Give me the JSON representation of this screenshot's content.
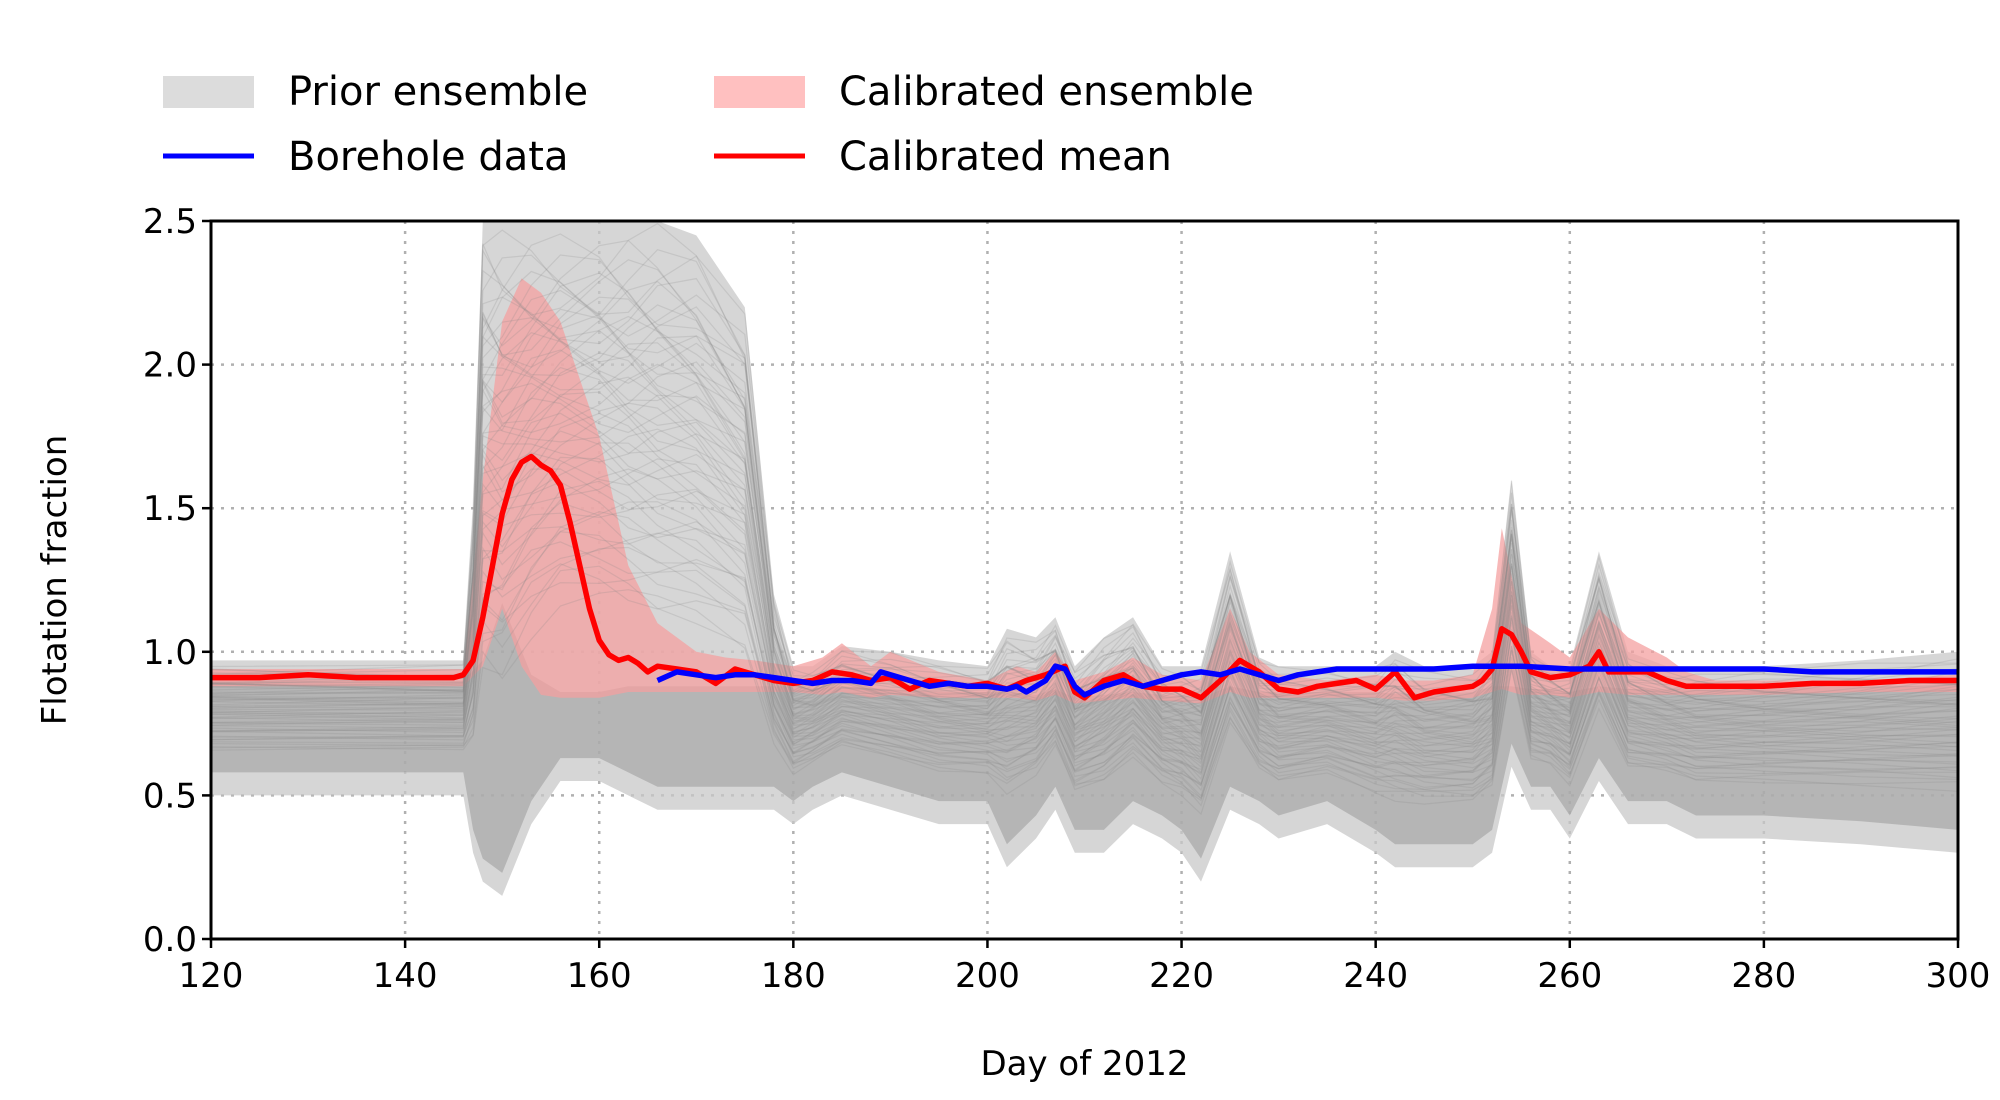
{
  "chart_data": {
    "type": "line",
    "xlabel": "Day of 2012",
    "ylabel": "Flotation fraction",
    "xlim": [
      120,
      300
    ],
    "ylim": [
      0,
      2.5
    ],
    "xticks": [
      120,
      140,
      160,
      180,
      200,
      220,
      240,
      260,
      280,
      300
    ],
    "yticks": [
      0.0,
      0.5,
      1.0,
      1.5,
      2.0,
      2.5
    ],
    "xtick_labels": [
      "120",
      "140",
      "160",
      "180",
      "200",
      "220",
      "240",
      "260",
      "280",
      "300"
    ],
    "ytick_labels": [
      "0.0",
      "0.5",
      "1.0",
      "1.5",
      "2.0",
      "2.5"
    ],
    "grid": true,
    "legend_position": "top, above plot, two columns",
    "colors": {
      "prior": "#c8c8c8",
      "prior_lines": "#8a8a8a",
      "calibrated": "#f4a0a0",
      "borehole": "#0000ff",
      "calibrated_mean": "#ff0000",
      "grid": "#b0b0b0"
    },
    "legend": [
      {
        "label": "Prior ensemble",
        "kind": "patch",
        "color": "#dcdcdc"
      },
      {
        "label": "Calibrated ensemble",
        "kind": "patch",
        "color": "#ffc0c0"
      },
      {
        "label": "Borehole data",
        "kind": "line",
        "color": "#0000ff"
      },
      {
        "label": "Calibrated mean",
        "kind": "line",
        "color": "#ff0000"
      }
    ],
    "series": [
      {
        "name": "Prior ensemble",
        "kind": "band",
        "x": [
          120,
          146,
          147,
          148,
          150,
          153,
          156,
          160,
          163,
          166,
          170,
          175,
          178,
          180,
          182,
          185,
          190,
          195,
          200,
          202,
          205,
          207,
          209,
          212,
          215,
          218,
          220,
          222,
          225,
          228,
          230,
          235,
          240,
          242,
          245,
          250,
          252,
          254,
          256,
          258,
          260,
          263,
          266,
          270,
          273,
          280,
          290,
          300
        ],
        "upper": [
          0.97,
          0.97,
          1.5,
          2.5,
          2.5,
          2.5,
          2.5,
          2.5,
          2.5,
          2.5,
          2.45,
          2.2,
          1.2,
          0.95,
          0.95,
          1.02,
          1.0,
          0.97,
          0.95,
          1.08,
          1.05,
          1.12,
          0.95,
          1.05,
          1.12,
          0.95,
          0.95,
          0.95,
          1.35,
          0.98,
          0.95,
          0.95,
          0.95,
          1.0,
          0.95,
          0.95,
          1.0,
          1.6,
          1.0,
          0.95,
          0.95,
          1.35,
          1.0,
          0.95,
          0.95,
          0.95,
          0.97,
          1.0
        ],
        "lower": [
          0.5,
          0.5,
          0.3,
          0.2,
          0.15,
          0.4,
          0.55,
          0.55,
          0.5,
          0.45,
          0.45,
          0.45,
          0.45,
          0.4,
          0.45,
          0.5,
          0.45,
          0.4,
          0.4,
          0.25,
          0.35,
          0.45,
          0.3,
          0.3,
          0.4,
          0.35,
          0.3,
          0.2,
          0.45,
          0.4,
          0.35,
          0.4,
          0.3,
          0.25,
          0.25,
          0.25,
          0.3,
          0.6,
          0.45,
          0.45,
          0.35,
          0.55,
          0.4,
          0.4,
          0.35,
          0.35,
          0.33,
          0.3
        ]
      },
      {
        "name": "Calibrated ensemble",
        "kind": "band",
        "x": [
          120,
          146,
          148,
          150,
          152,
          154,
          156,
          158,
          160,
          163,
          166,
          170,
          173,
          176,
          180,
          183,
          185,
          188,
          190,
          195,
          200,
          203,
          205,
          207,
          209,
          212,
          215,
          218,
          222,
          225,
          227,
          230,
          235,
          240,
          243,
          246,
          250,
          252,
          253,
          255,
          258,
          260,
          263,
          266,
          270,
          272,
          275,
          280,
          290,
          300
        ],
        "upper": [
          0.94,
          0.94,
          1.6,
          2.15,
          2.3,
          2.25,
          2.15,
          1.95,
          1.75,
          1.3,
          1.1,
          1.0,
          0.98,
          0.97,
          0.95,
          0.98,
          1.03,
          0.95,
          1.0,
          0.93,
          0.9,
          0.95,
          0.93,
          1.0,
          0.9,
          0.93,
          0.98,
          0.92,
          0.9,
          1.15,
          1.0,
          0.92,
          0.9,
          0.92,
          0.9,
          0.9,
          0.92,
          1.15,
          1.43,
          1.1,
          1.03,
          0.98,
          1.15,
          1.05,
          0.98,
          0.93,
          0.9,
          0.9,
          0.9,
          0.92
        ],
        "lower": [
          0.88,
          0.88,
          0.95,
          1.15,
          0.95,
          0.85,
          0.84,
          0.84,
          0.84,
          0.86,
          0.86,
          0.86,
          0.86,
          0.86,
          0.86,
          0.85,
          0.86,
          0.84,
          0.85,
          0.84,
          0.84,
          0.84,
          0.83,
          0.85,
          0.82,
          0.83,
          0.84,
          0.83,
          0.82,
          0.86,
          0.84,
          0.84,
          0.84,
          0.84,
          0.83,
          0.83,
          0.84,
          0.86,
          0.87,
          0.85,
          0.85,
          0.84,
          0.86,
          0.85,
          0.85,
          0.85,
          0.85,
          0.85,
          0.86,
          0.86
        ]
      },
      {
        "name": "Calibrated mean",
        "kind": "line",
        "x": [
          120,
          125,
          130,
          135,
          140,
          145,
          146,
          147,
          148,
          149,
          150,
          151,
          152,
          153,
          154,
          155,
          156,
          157,
          158,
          159,
          160,
          161,
          162,
          163,
          164,
          165,
          166,
          168,
          170,
          172,
          174,
          176,
          178,
          180,
          182,
          184,
          186,
          188,
          190,
          192,
          194,
          196,
          198,
          200,
          202,
          204,
          206,
          208,
          209,
          210,
          212,
          214,
          216,
          218,
          220,
          222,
          224,
          226,
          228,
          230,
          232,
          234,
          236,
          238,
          240,
          242,
          244,
          246,
          248,
          250,
          251,
          252,
          253,
          254,
          255,
          256,
          258,
          260,
          262,
          263,
          264,
          266,
          268,
          270,
          272,
          275,
          280,
          285,
          290,
          295,
          300
        ],
        "y": [
          0.91,
          0.91,
          0.92,
          0.91,
          0.91,
          0.91,
          0.92,
          0.97,
          1.12,
          1.3,
          1.48,
          1.6,
          1.66,
          1.68,
          1.65,
          1.63,
          1.58,
          1.45,
          1.3,
          1.15,
          1.04,
          0.99,
          0.97,
          0.98,
          0.96,
          0.93,
          0.95,
          0.94,
          0.93,
          0.89,
          0.94,
          0.92,
          0.9,
          0.89,
          0.9,
          0.93,
          0.92,
          0.9,
          0.91,
          0.87,
          0.9,
          0.89,
          0.88,
          0.89,
          0.87,
          0.9,
          0.92,
          0.95,
          0.86,
          0.84,
          0.9,
          0.92,
          0.88,
          0.87,
          0.87,
          0.84,
          0.9,
          0.97,
          0.93,
          0.87,
          0.86,
          0.88,
          0.89,
          0.9,
          0.87,
          0.93,
          0.84,
          0.86,
          0.87,
          0.88,
          0.9,
          0.94,
          1.08,
          1.06,
          1.0,
          0.93,
          0.91,
          0.92,
          0.95,
          1.0,
          0.93,
          0.93,
          0.93,
          0.9,
          0.88,
          0.88,
          0.88,
          0.89,
          0.89,
          0.9,
          0.9
        ]
      },
      {
        "name": "Borehole data",
        "kind": "line",
        "x": [
          166,
          168,
          170,
          172,
          174,
          176,
          178,
          180,
          182,
          184,
          186,
          188,
          189,
          190,
          192,
          194,
          196,
          198,
          200,
          202,
          203,
          204,
          206,
          207,
          208,
          209,
          210,
          212,
          214,
          216,
          218,
          220,
          222,
          224,
          226,
          228,
          230,
          232,
          234,
          236,
          238,
          240,
          242,
          244,
          246,
          250,
          255,
          260,
          265,
          270,
          275,
          280,
          285,
          290,
          295,
          300
        ],
        "y": [
          0.9,
          0.93,
          0.92,
          0.91,
          0.92,
          0.92,
          0.91,
          0.9,
          0.89,
          0.9,
          0.9,
          0.89,
          0.93,
          0.92,
          0.9,
          0.88,
          0.89,
          0.88,
          0.88,
          0.87,
          0.88,
          0.86,
          0.9,
          0.95,
          0.94,
          0.88,
          0.85,
          0.88,
          0.9,
          0.88,
          0.9,
          0.92,
          0.93,
          0.92,
          0.94,
          0.92,
          0.9,
          0.92,
          0.93,
          0.94,
          0.94,
          0.94,
          0.94,
          0.94,
          0.94,
          0.95,
          0.95,
          0.94,
          0.94,
          0.94,
          0.94,
          0.94,
          0.93,
          0.93,
          0.93,
          0.93
        ]
      }
    ]
  }
}
